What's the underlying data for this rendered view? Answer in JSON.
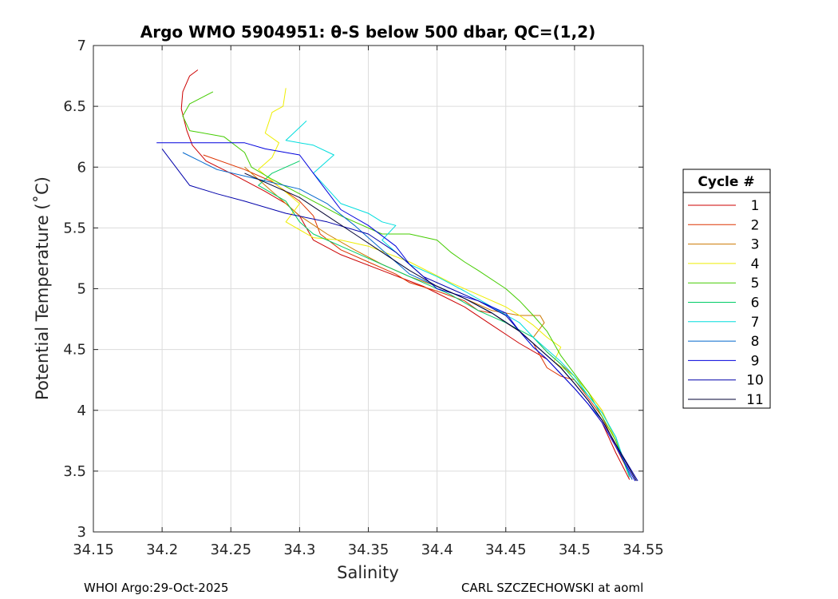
{
  "chart_data": {
    "type": "line",
    "title": "Argo WMO 5904951: θ-S below 500 dbar,  QC=(1,2)",
    "xlabel": "Salinity",
    "ylabel": "Potential Temperature (˚C)",
    "xlim": [
      34.15,
      34.55
    ],
    "ylim": [
      3,
      7
    ],
    "xticks": [
      "34.15",
      "34.2",
      "34.25",
      "34.3",
      "34.35",
      "34.4",
      "34.45",
      "34.5",
      "34.55"
    ],
    "yticks": [
      "3",
      "3.5",
      "4",
      "4.5",
      "5",
      "5.5",
      "6",
      "6.5",
      "7"
    ],
    "grid": true,
    "legend_title": "Cycle #",
    "legend_position": "right",
    "series": [
      {
        "name": "1",
        "color": "#cc0000",
        "x": [
          34.226,
          34.22,
          34.215,
          34.214,
          34.218,
          34.222,
          34.232,
          34.255,
          34.275,
          34.29,
          34.3,
          34.31,
          34.33,
          34.36,
          34.39,
          34.42,
          34.44,
          34.46,
          34.48,
          34.49,
          34.5,
          34.51,
          34.52,
          34.53,
          34.54
        ],
        "y": [
          6.8,
          6.75,
          6.62,
          6.48,
          6.3,
          6.18,
          6.05,
          5.92,
          5.8,
          5.7,
          5.6,
          5.4,
          5.28,
          5.15,
          5.02,
          4.85,
          4.7,
          4.55,
          4.42,
          4.3,
          4.18,
          4.05,
          3.9,
          3.65,
          3.43
        ]
      },
      {
        "name": "2",
        "color": "#dd3300",
        "x": [
          34.23,
          34.26,
          34.28,
          34.3,
          34.31,
          34.315,
          34.33,
          34.35,
          34.37,
          34.38,
          34.4,
          34.42,
          34.43,
          34.44,
          34.45,
          34.46,
          34.47,
          34.475,
          34.48,
          34.49,
          34.5,
          34.51,
          34.52,
          34.53,
          34.542
        ],
        "y": [
          6.1,
          5.98,
          5.88,
          5.72,
          5.6,
          5.45,
          5.32,
          5.22,
          5.12,
          5.05,
          4.98,
          4.9,
          4.82,
          4.8,
          4.72,
          4.65,
          4.55,
          4.45,
          4.35,
          4.28,
          4.25,
          4.1,
          3.95,
          3.7,
          3.43
        ]
      },
      {
        "name": "3",
        "color": "#cc7700",
        "x": [
          34.26,
          34.27,
          34.28,
          34.3,
          34.32,
          34.34,
          34.36,
          34.38,
          34.4,
          34.42,
          34.44,
          34.46,
          34.475,
          34.478,
          34.47,
          34.48,
          34.49,
          34.5,
          34.51,
          34.52,
          34.53,
          34.54
        ],
        "y": [
          6.0,
          5.9,
          5.8,
          5.6,
          5.45,
          5.32,
          5.2,
          5.1,
          5.02,
          4.92,
          4.82,
          4.78,
          4.78,
          4.72,
          4.6,
          4.48,
          4.38,
          4.28,
          4.15,
          4.0,
          3.75,
          3.45
        ]
      },
      {
        "name": "4",
        "color": "#eeee00",
        "x": [
          34.29,
          34.288,
          34.28,
          34.275,
          34.285,
          34.28,
          34.27,
          34.3,
          34.29,
          34.31,
          34.33,
          34.35,
          34.38,
          34.41,
          34.43,
          34.45,
          34.46,
          34.47,
          34.48,
          34.49,
          34.485,
          34.5,
          34.51,
          34.52,
          34.53,
          34.54
        ],
        "y": [
          6.65,
          6.5,
          6.45,
          6.28,
          6.2,
          6.08,
          5.98,
          5.7,
          5.55,
          5.42,
          5.4,
          5.35,
          5.22,
          5.05,
          4.95,
          4.85,
          4.78,
          4.7,
          4.6,
          4.52,
          4.4,
          4.28,
          4.15,
          4.0,
          3.75,
          3.45
        ]
      },
      {
        "name": "5",
        "color": "#44cc00",
        "x": [
          34.237,
          34.22,
          34.215,
          34.22,
          34.245,
          34.26,
          34.265,
          34.28,
          34.3,
          34.31,
          34.33,
          34.36,
          34.38,
          34.4,
          34.41,
          34.42,
          34.43,
          34.45,
          34.46,
          34.47,
          34.48,
          34.49,
          34.5,
          34.51,
          34.52,
          34.53,
          34.54
        ],
        "y": [
          6.62,
          6.52,
          6.42,
          6.3,
          6.25,
          6.12,
          6.0,
          5.9,
          5.78,
          5.72,
          5.6,
          5.45,
          5.45,
          5.4,
          5.3,
          5.22,
          5.15,
          5.0,
          4.9,
          4.78,
          4.65,
          4.45,
          4.3,
          4.15,
          3.95,
          3.75,
          3.45
        ]
      },
      {
        "name": "6",
        "color": "#00cc66",
        "x": [
          34.3,
          34.28,
          34.27,
          34.29,
          34.3,
          34.31,
          34.33,
          34.35,
          34.37,
          34.39,
          34.41,
          34.43,
          34.45,
          34.47,
          34.48,
          34.49,
          34.5,
          34.51,
          34.52,
          34.53,
          34.54
        ],
        "y": [
          6.05,
          5.95,
          5.85,
          5.72,
          5.55,
          5.45,
          5.35,
          5.25,
          5.15,
          5.05,
          4.95,
          4.82,
          4.72,
          4.6,
          4.48,
          4.38,
          4.25,
          4.12,
          3.98,
          3.78,
          3.45
        ]
      },
      {
        "name": "7",
        "color": "#00dddd",
        "x": [
          34.305,
          34.29,
          34.31,
          34.325,
          34.31,
          34.33,
          34.35,
          34.36,
          34.37,
          34.36,
          34.37,
          34.38,
          34.4,
          34.42,
          34.44,
          34.46,
          34.47,
          34.48,
          34.49,
          34.5,
          34.51,
          34.52,
          34.53,
          34.54
        ],
        "y": [
          6.38,
          6.22,
          6.18,
          6.1,
          5.95,
          5.7,
          5.62,
          5.55,
          5.52,
          5.4,
          5.3,
          5.2,
          5.1,
          4.98,
          4.85,
          4.72,
          4.6,
          4.5,
          4.4,
          4.28,
          4.12,
          3.98,
          3.78,
          3.45
        ]
      },
      {
        "name": "8",
        "color": "#0066cc",
        "x": [
          34.215,
          34.24,
          34.27,
          34.3,
          34.32,
          34.34,
          34.35,
          34.36,
          34.37,
          34.38,
          34.4,
          34.42,
          34.44,
          34.46,
          34.47,
          34.48,
          34.49,
          34.5,
          34.51,
          34.52,
          34.53,
          34.542
        ],
        "y": [
          6.12,
          5.98,
          5.9,
          5.82,
          5.7,
          5.52,
          5.42,
          5.32,
          5.22,
          5.12,
          5.02,
          4.92,
          4.8,
          4.65,
          4.52,
          4.42,
          4.3,
          4.18,
          4.05,
          3.92,
          3.72,
          3.43
        ]
      },
      {
        "name": "9",
        "color": "#0000dd",
        "x": [
          34.196,
          34.24,
          34.26,
          34.275,
          34.3,
          34.31,
          34.32,
          34.33,
          34.35,
          34.37,
          34.38,
          34.4,
          34.43,
          34.45,
          34.46,
          34.47,
          34.48,
          34.49,
          34.5,
          34.51,
          34.52,
          34.53,
          34.544
        ],
        "y": [
          6.2,
          6.2,
          6.2,
          6.15,
          6.1,
          5.95,
          5.8,
          5.65,
          5.52,
          5.35,
          5.2,
          5.0,
          4.9,
          4.8,
          4.65,
          4.52,
          4.42,
          4.3,
          4.18,
          4.05,
          3.9,
          3.7,
          3.42
        ]
      },
      {
        "name": "10",
        "color": "#0000aa",
        "x": [
          34.2,
          34.21,
          34.22,
          34.24,
          34.26,
          34.29,
          34.32,
          34.35,
          34.37,
          34.39,
          34.41,
          34.43,
          34.45,
          34.46,
          34.47,
          34.48,
          34.49,
          34.5,
          34.51,
          34.52,
          34.53,
          34.546
        ],
        "y": [
          6.15,
          6.0,
          5.85,
          5.78,
          5.72,
          5.62,
          5.55,
          5.45,
          5.3,
          5.1,
          5.0,
          4.9,
          4.78,
          4.65,
          4.55,
          4.45,
          4.35,
          4.22,
          4.08,
          3.92,
          3.72,
          3.42
        ]
      },
      {
        "name": "11",
        "color": "#000033",
        "x": [
          34.26,
          34.28,
          34.3,
          34.32,
          34.34,
          34.36,
          34.38,
          34.4,
          34.42,
          34.44,
          34.46,
          34.47,
          34.48,
          34.49,
          34.5,
          34.51,
          34.52,
          34.53,
          34.545
        ],
        "y": [
          5.95,
          5.85,
          5.75,
          5.6,
          5.45,
          5.3,
          5.15,
          5.02,
          4.92,
          4.8,
          4.65,
          4.55,
          4.45,
          4.35,
          4.22,
          4.08,
          3.92,
          3.72,
          3.42
        ]
      }
    ]
  },
  "footer": {
    "left": "WHOI Argo:29-Oct-2025",
    "right": "CARL SZCZECHOWSKI at aoml"
  }
}
